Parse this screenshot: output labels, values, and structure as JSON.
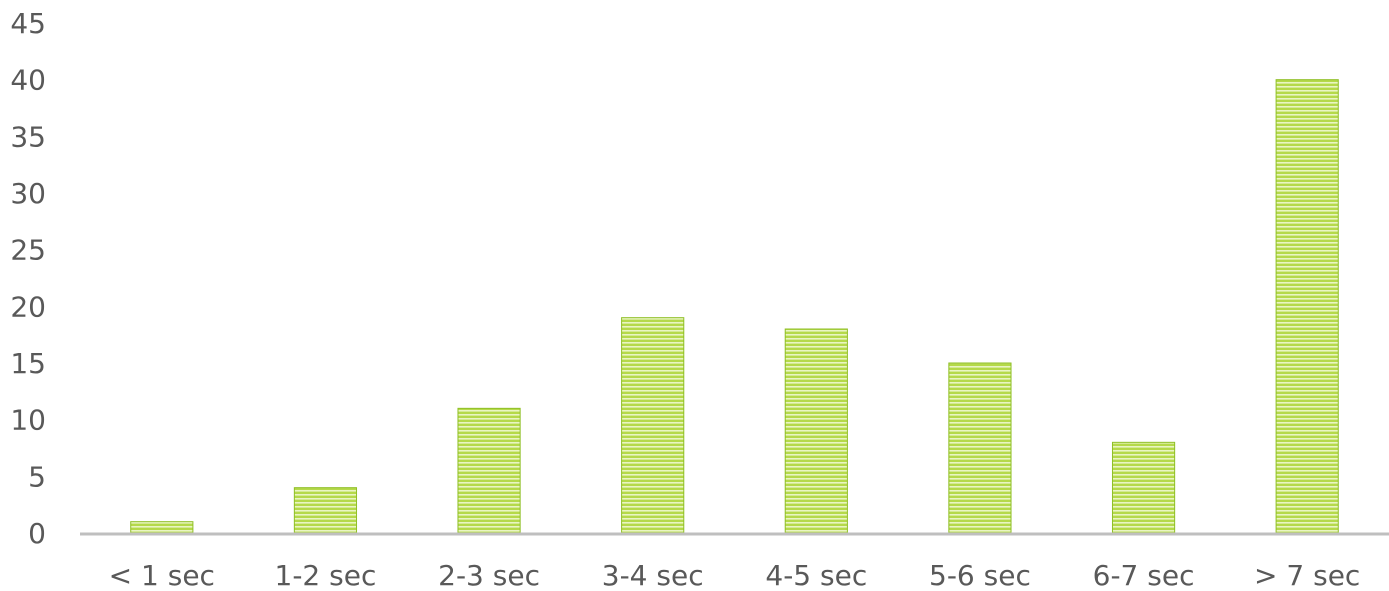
{
  "chart_data": {
    "type": "bar",
    "categories": [
      "< 1 sec",
      "1-2 sec",
      "2-3 sec",
      "3-4 sec",
      "4-5 sec",
      "5-6 sec",
      "6-7 sec",
      "> 7 sec"
    ],
    "values": [
      1,
      4,
      11,
      19,
      18,
      15,
      8,
      40
    ],
    "title": "",
    "xlabel": "",
    "ylabel": "",
    "ylim": [
      0,
      45
    ],
    "yticks": [
      0,
      5,
      10,
      15,
      20,
      25,
      30,
      35,
      40,
      45
    ],
    "grid": false,
    "legend": "none",
    "colors": {
      "bar_fill": "#b5d94a",
      "bar_stripe": "#e9f5c3",
      "bar_edge": "#8fbf26",
      "axis": "#bfbfbf",
      "text": "#595959"
    }
  }
}
